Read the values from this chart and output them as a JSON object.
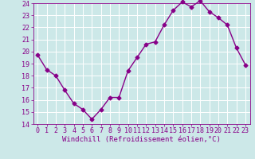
{
  "x": [
    0,
    1,
    2,
    3,
    4,
    5,
    6,
    7,
    8,
    9,
    10,
    11,
    12,
    13,
    14,
    15,
    16,
    17,
    18,
    19,
    20,
    21,
    22,
    23
  ],
  "y": [
    19.7,
    18.5,
    18.0,
    16.8,
    15.7,
    15.2,
    14.4,
    15.2,
    16.2,
    16.2,
    18.4,
    19.5,
    20.6,
    20.8,
    22.2,
    23.4,
    24.1,
    23.7,
    24.2,
    23.3,
    22.8,
    22.2,
    20.3,
    18.9
  ],
  "color": "#880088",
  "bg_color": "#cce8e8",
  "grid_color": "#aacccc",
  "xlabel": "Windchill (Refroidissement éolien,°C)",
  "ylim": [
    14,
    24
  ],
  "xlim": [
    -0.5,
    23.5
  ],
  "yticks": [
    14,
    15,
    16,
    17,
    18,
    19,
    20,
    21,
    22,
    23,
    24
  ],
  "xticks": [
    0,
    1,
    2,
    3,
    4,
    5,
    6,
    7,
    8,
    9,
    10,
    11,
    12,
    13,
    14,
    15,
    16,
    17,
    18,
    19,
    20,
    21,
    22,
    23
  ],
  "xlabel_fontsize": 6.5,
  "tick_fontsize": 6,
  "marker": "D",
  "marker_size": 2.5,
  "line_width": 1.0
}
